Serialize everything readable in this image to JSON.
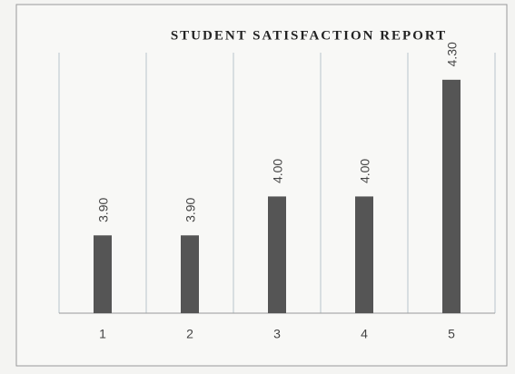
{
  "chart_data": {
    "type": "bar",
    "title": "STUDENT  SATISFACTION REPORT",
    "categories": [
      "1",
      "2",
      "3",
      "4",
      "5"
    ],
    "values": [
      3.9,
      3.9,
      4.0,
      4.0,
      4.3
    ],
    "value_labels": [
      "3.90",
      "3.90",
      "4.00",
      "4.00",
      "4.30"
    ],
    "color": "#555555",
    "ylim": [
      3.7,
      4.4
    ]
  }
}
